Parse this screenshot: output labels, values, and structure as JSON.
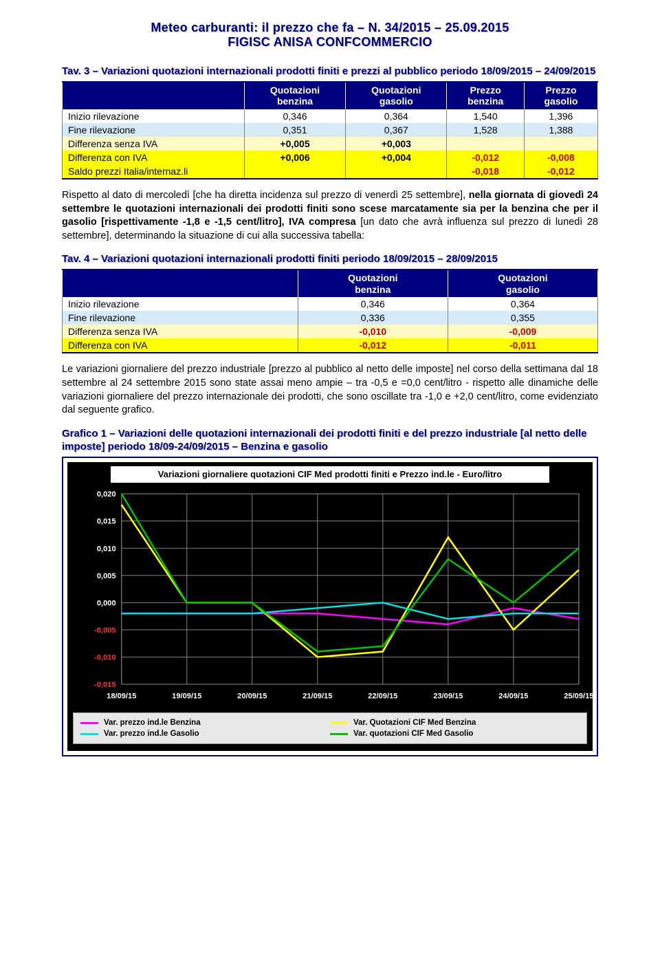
{
  "header": {
    "line1": "Meteo carburanti: il prezzo che fa – N. 34/2015 – 25.09.2015",
    "line2": "FIGISC ANISA CONFCOMMERCIO"
  },
  "tav3": {
    "caption": "Tav. 3 – Variazioni quotazioni internazionali prodotti finiti e prezzi al pubblico periodo 18/09/2015 – 24/09/2015",
    "headers": [
      "",
      "Quotazioni benzina",
      "Quotazioni gasolio",
      "Prezzo benzina",
      "Prezzo gasolio"
    ],
    "rows": [
      {
        "label": "Inizio rilevazione",
        "vals": [
          "0,346",
          "0,364",
          "1,540",
          "1,396"
        ],
        "cls": "row-init"
      },
      {
        "label": "Fine rilevazione",
        "vals": [
          "0,351",
          "0,367",
          "1,528",
          "1,388"
        ],
        "cls": "row-fine"
      },
      {
        "label": "Differenza senza IVA",
        "vals": [
          "+0,005",
          "+0,003",
          "",
          ""
        ],
        "cls": "row-diff-siva",
        "bold": true
      },
      {
        "label": "Differenza con IVA",
        "vals": [
          "+0,006",
          "+0,004",
          "-0,012",
          "-0,008"
        ],
        "cls": "row-diff-civa",
        "bold": true,
        "neg_from": 2
      },
      {
        "label": "Saldo prezzi Italia/internaz.li",
        "vals": [
          "",
          "",
          "-0,018",
          "-0,012"
        ],
        "cls": "row-saldo",
        "bold": true,
        "neg_from": 0
      }
    ]
  },
  "para1": {
    "pre": "Rispetto al dato di mercoledì [che ha diretta incidenza sul prezzo di venerdì 25 settembre], ",
    "bold": "nella giornata di giovedì 24 settembre le quotazioni internazionali dei prodotti finiti sono scese marcatamente sia per la benzina che per il gasolio [rispettivamente -1,8 e -1,5 cent/litro], IVA compresa",
    "post": " [un dato che avrà influenza sul prezzo di lunedì 28 settembre], determinando la situazione di cui alla successiva tabella:"
  },
  "tav4": {
    "caption": "Tav. 4 – Variazioni quotazioni internazionali prodotti finiti periodo 18/09/2015 – 28/09/2015",
    "headers": [
      "",
      "Quotazioni benzina",
      "Quotazioni gasolio"
    ],
    "rows": [
      {
        "label": "Inizio rilevazione",
        "vals": [
          "0,346",
          "0,364"
        ],
        "cls": "row-init"
      },
      {
        "label": "Fine rilevazione",
        "vals": [
          "0,336",
          "0,355"
        ],
        "cls": "row-fine"
      },
      {
        "label": "Differenza senza IVA",
        "vals": [
          "-0,010",
          "-0,009"
        ],
        "cls": "row-diff-siva",
        "bold": true,
        "neg_from": 0
      },
      {
        "label": "Differenza con IVA",
        "vals": [
          "-0,012",
          "-0,011"
        ],
        "cls": "row-diff-civa",
        "bold": true,
        "neg_from": 0
      }
    ]
  },
  "para2": "Le variazioni giornaliere del prezzo industriale [prezzo al pubblico al netto delle imposte] nel corso della settimana dal 18 settembre al 24 settembre 2015 sono state assai meno ampie – tra -0,5 e =0,0 cent/litro - rispetto alle dinamiche delle variazioni giornaliere del prezzo internazionale dei prodotti, che sono oscillate tra -1,0 e +2,0 cent/litro, come evidenziato dal seguente grafico.",
  "grafico1": {
    "caption": "Grafico 1 – Variazioni delle quotazioni internazionali dei prodotti finiti e del prezzo industriale [al netto delle imposte] periodo 18/09-24/09/2015 – Benzina e gasolio",
    "title": "Variazioni giornaliere quotazioni CIF Med prodotti finiti e Prezzo ind.le - Euro/litro",
    "type": "line",
    "background_color": "#000000",
    "plot_area_color": "#000000",
    "grid_color": "#808080",
    "axis_label_color": "#ffffff",
    "axis_label_fontsize": 11,
    "ylim": [
      -0.015,
      0.02
    ],
    "yticks": [
      -0.015,
      -0.01,
      -0.005,
      0.0,
      0.005,
      0.01,
      0.015,
      0.02
    ],
    "ytick_labels": [
      "-0,015",
      "-0,010",
      "-0,005",
      "0,000",
      "0,005",
      "0,010",
      "0,015",
      "0,020"
    ],
    "ytick_neg_color": "#ff3030",
    "ytick_pos_color": "#ffffff",
    "x_categories": [
      "18/09/15",
      "19/09/15",
      "20/09/15",
      "21/09/15",
      "22/09/15",
      "23/09/15",
      "24/09/15",
      "25/09/15"
    ],
    "line_width": 2.5,
    "series": [
      {
        "name": "Var. prezzo ind.le Benzina",
        "color": "#ff00ff",
        "y": [
          -0.002,
          -0.002,
          -0.002,
          -0.002,
          -0.003,
          -0.004,
          -0.001,
          -0.003
        ]
      },
      {
        "name": "Var. Quotazioni CIF Med Benzina",
        "color": "#ffff00",
        "y": [
          0.018,
          0.0,
          0.0,
          -0.01,
          -0.009,
          0.012,
          -0.005,
          0.006
        ]
      },
      {
        "name": "Var. prezzo ind.le Gasolio",
        "color": "#00e0e0",
        "y": [
          -0.002,
          -0.002,
          -0.002,
          -0.001,
          0.0,
          -0.003,
          -0.002,
          -0.002
        ]
      },
      {
        "name": "Var. quotazioni CIF Med Gasolio",
        "color": "#00c000",
        "y": [
          0.02,
          0.0,
          0.0,
          -0.009,
          -0.008,
          0.008,
          0.0,
          0.01
        ]
      }
    ],
    "legend": {
      "background": "#e8e8e8",
      "items": [
        {
          "label": "Var. prezzo ind.le Benzina",
          "color": "#ff00ff"
        },
        {
          "label": "Var. Quotazioni CIF Med Benzina",
          "color": "#ffff00"
        },
        {
          "label": "Var. prezzo ind.le Gasolio",
          "color": "#00e0e0"
        },
        {
          "label": "Var. quotazioni CIF Med Gasolio",
          "color": "#00c000"
        }
      ]
    }
  }
}
